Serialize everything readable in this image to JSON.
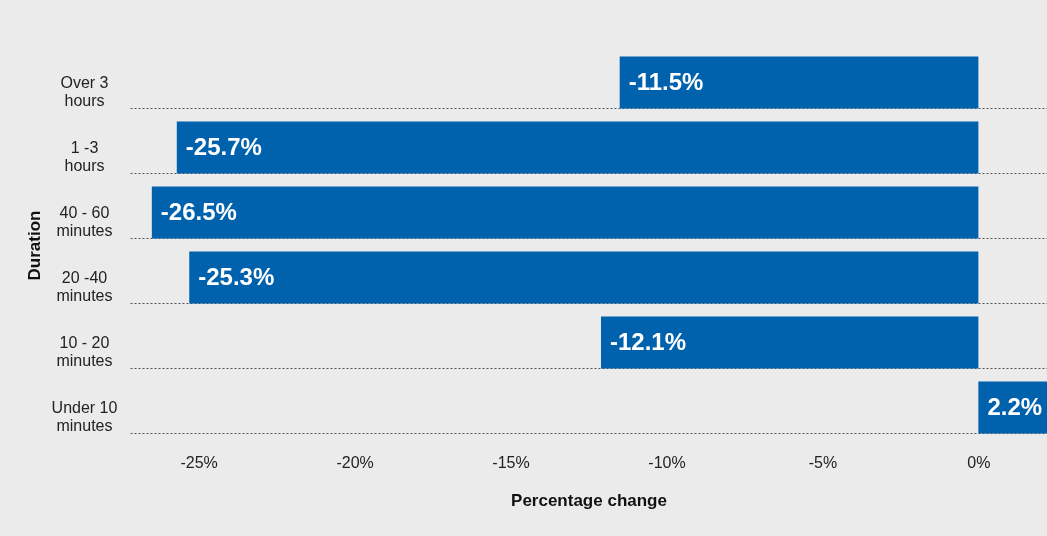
{
  "chart_data": {
    "type": "bar",
    "orientation": "horizontal",
    "xlabel": "Percentage change",
    "ylabel": "Duration",
    "categories": [
      "Over 3 hours",
      "1 -3 hours",
      "40 - 60 minutes",
      "20 -40 minutes",
      "10 - 20 minutes",
      "Under 10 minutes"
    ],
    "values": [
      -11.5,
      -25.7,
      -26.5,
      -25.3,
      -12.1,
      2.2
    ],
    "value_labels": [
      "-11.5%",
      "-25.7%",
      "-26.5%",
      "-25.3%",
      "-12.1%",
      "2.2%"
    ],
    "color": "#0061ad",
    "xlim": [
      -27.2,
      2.2
    ],
    "xticks": [
      {
        "value": -25,
        "label": "-25%"
      },
      {
        "value": -20,
        "label": "-20%"
      },
      {
        "value": -15,
        "label": "-15%"
      },
      {
        "value": -10,
        "label": "-10%"
      },
      {
        "value": -5,
        "label": "-5%"
      },
      {
        "value": 0,
        "label": "0%"
      }
    ],
    "grid": "y"
  }
}
